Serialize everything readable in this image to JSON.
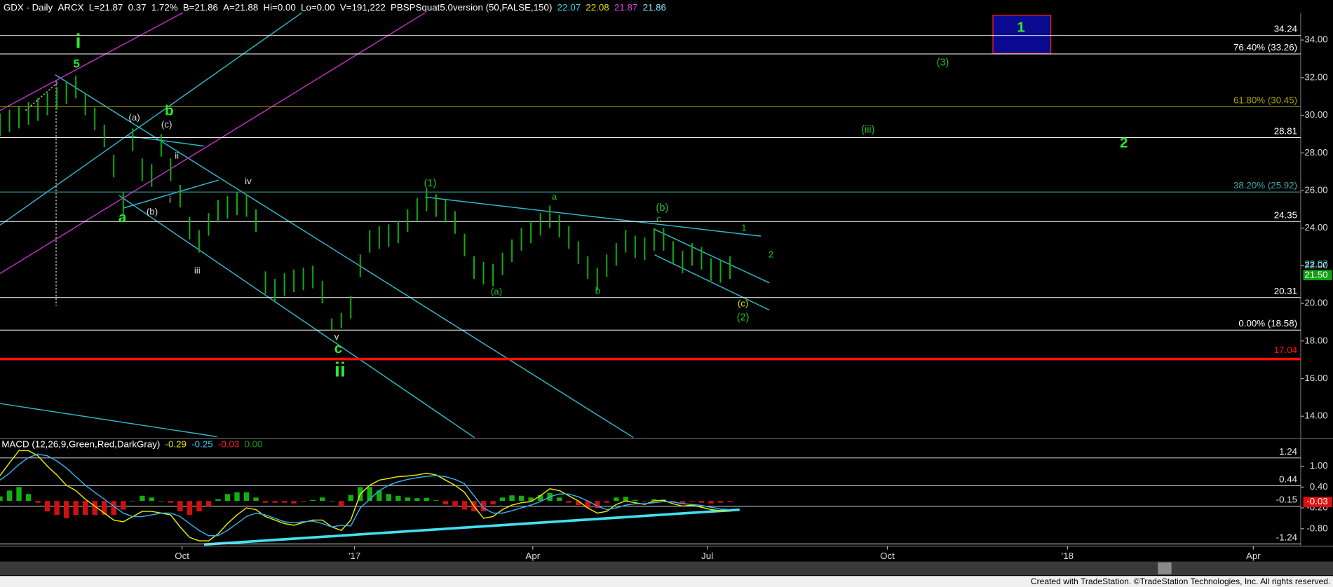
{
  "header": {
    "items": [
      {
        "text": "GDX - Daily",
        "color": "#ffffff"
      },
      {
        "text": "ARCX",
        "color": "#ffffff"
      },
      {
        "text": "L=21.87",
        "color": "#ffffff"
      },
      {
        "text": "0.37",
        "color": "#ffffff"
      },
      {
        "text": "1.72%",
        "color": "#ffffff"
      },
      {
        "text": "B=21.86",
        "color": "#ffffff"
      },
      {
        "text": "A=21.88",
        "color": "#ffffff"
      },
      {
        "text": "Hi=0.00",
        "color": "#ffffff"
      },
      {
        "text": "Lo=0.00",
        "color": "#ffffff"
      },
      {
        "text": "V=191,222",
        "color": "#ffffff"
      },
      {
        "text": "PBSPSquat5.0version (50,FALSE,150)",
        "color": "#ffffff"
      },
      {
        "text": "22.07",
        "color": "#30d8e0"
      },
      {
        "text": "22.08",
        "color": "#e0e000"
      },
      {
        "text": "21.87",
        "color": "#e040e0"
      },
      {
        "text": "21.86",
        "color": "#80e8ff"
      }
    ]
  },
  "chart_data": [
    {
      "type": "range-bar",
      "color": "#10b010",
      "x": [
        0,
        5,
        10,
        15,
        20,
        25,
        30,
        35,
        40,
        45,
        50,
        55,
        60,
        65,
        70,
        75,
        80,
        85,
        90,
        95,
        100,
        105,
        110,
        115,
        120,
        125,
        130,
        135,
        140,
        145,
        150,
        155,
        160,
        165,
        170,
        175,
        180,
        185,
        190,
        195,
        200,
        205,
        210,
        215,
        220,
        225,
        230,
        235,
        240,
        245,
        250,
        255,
        260,
        265,
        270,
        275,
        280,
        285,
        290,
        295,
        300,
        305,
        310,
        315,
        320,
        325,
        330,
        335,
        340,
        345,
        350,
        355,
        360,
        365,
        370,
        375,
        380,
        385
      ],
      "high": [
        30.1,
        30.3,
        30.5,
        30.7,
        30.9,
        31.2,
        31.5,
        31.8,
        32.1,
        31.2,
        30.4,
        29.5,
        27.9,
        25.9,
        29.3,
        27.7,
        27.4,
        29.0,
        27.7,
        26.3,
        24.6,
        23.9,
        24.8,
        25.5,
        25.7,
        25.9,
        25.8,
        25.0,
        21.7,
        21.3,
        21.6,
        21.8,
        21.9,
        22.0,
        21.2,
        19.2,
        19.5,
        20.4,
        22.6,
        23.9,
        24.1,
        24.2,
        24.4,
        25.0,
        25.6,
        26.1,
        25.8,
        25.5,
        24.9,
        23.7,
        22.5,
        22.2,
        22.1,
        22.7,
        23.4,
        24.0,
        24.4,
        24.8,
        25.2,
        24.7,
        24.1,
        23.3,
        22.5,
        21.9,
        22.6,
        23.2,
        23.9,
        23.6,
        23.5,
        24.0,
        24.0,
        23.3,
        22.8,
        23.2,
        23.0,
        22.4,
        22.3,
        22.5
      ],
      "low": [
        28.9,
        29.1,
        29.3,
        29.5,
        29.7,
        30.0,
        30.3,
        30.6,
        30.9,
        30.0,
        29.2,
        28.3,
        26.7,
        24.7,
        28.1,
        26.5,
        26.2,
        27.8,
        26.5,
        25.1,
        23.4,
        22.7,
        23.6,
        24.3,
        24.5,
        24.7,
        24.6,
        23.8,
        20.5,
        20.1,
        20.4,
        20.6,
        20.7,
        20.8,
        20.0,
        18.6,
        18.7,
        19.2,
        21.4,
        22.7,
        22.9,
        23.0,
        23.2,
        23.8,
        24.4,
        24.9,
        24.6,
        24.3,
        23.7,
        22.5,
        21.3,
        21.0,
        20.9,
        21.5,
        22.2,
        22.8,
        23.2,
        23.6,
        24.0,
        23.5,
        22.9,
        22.1,
        21.3,
        20.7,
        21.4,
        22.0,
        22.7,
        22.4,
        22.3,
        22.8,
        22.8,
        22.1,
        21.6,
        22.0,
        21.8,
        21.2,
        21.1,
        21.3
      ],
      "xlim": [
        0,
        686
      ],
      "ylim": [
        12.87,
        35.45
      ],
      "yticks": [
        {
          "value": 14,
          "label": "14.00"
        },
        {
          "value": 16,
          "label": "16.00"
        },
        {
          "value": 18,
          "label": "18.00"
        },
        {
          "value": 20,
          "label": "20.00"
        },
        {
          "value": 22,
          "label": "22.00"
        },
        {
          "value": 24,
          "label": "24.00"
        },
        {
          "value": 26,
          "label": "26.00"
        },
        {
          "value": 28,
          "label": "28.00"
        },
        {
          "value": 30,
          "label": "30.00"
        },
        {
          "value": 32,
          "label": "32.00"
        },
        {
          "value": 34,
          "label": "34.00"
        }
      ],
      "levels": [
        {
          "value": 34.24,
          "color": "#ffffff"
        },
        {
          "value": 33.26,
          "label": "76.40% (33.26)",
          "color": "#ffffff"
        },
        {
          "value": 30.45,
          "label": "61.80% (30.45)",
          "color": "#a8a000"
        },
        {
          "value": 28.81,
          "color": "#ffffff"
        },
        {
          "value": 25.92,
          "label": "38.20% (25.92)",
          "color": "#3aa8a8"
        },
        {
          "value": 24.35,
          "color": "#ffffff"
        },
        {
          "value": 20.31,
          "color": "#ffffff"
        },
        {
          "value": 18.58,
          "label": "0.00% (18.58)",
          "color": "#ffffff"
        }
      ],
      "support_line": {
        "value": 17.04,
        "color": "#ff1010"
      },
      "last_values": [
        {
          "value": 22.07,
          "color": "#30d8e0",
          "boxed": false
        },
        {
          "value": 21.5,
          "label": "21.50",
          "color": "#10a010",
          "boxed": true
        }
      ],
      "annotations": [
        "i",
        "5",
        "(a)",
        "b",
        "(c)",
        "ii",
        "i",
        "iv",
        "(b)",
        "a",
        "iii",
        "v",
        "c",
        "ii",
        "(1)",
        "a",
        "(a)",
        "b",
        "(b)",
        "c",
        "1",
        "2",
        "(c)",
        "(2)",
        "(3)",
        "(iii)",
        "2",
        "1"
      ]
    },
    {
      "type": "macd",
      "title": "MACD (12,26,9,Green,Red,DarkGray)",
      "title_values": [
        {
          "text": "-0.29",
          "color": "#e0e000"
        },
        {
          "text": "-0.25",
          "color": "#30c8f0"
        },
        {
          "text": "-0.03",
          "color": "#ff2020"
        },
        {
          "text": "0.00",
          "color": "#10a010"
        }
      ],
      "x": [
        0,
        5,
        10,
        15,
        20,
        25,
        30,
        35,
        40,
        45,
        50,
        55,
        60,
        65,
        70,
        75,
        80,
        85,
        90,
        95,
        100,
        105,
        110,
        115,
        120,
        125,
        130,
        135,
        140,
        145,
        150,
        155,
        160,
        165,
        170,
        175,
        180,
        185,
        190,
        195,
        200,
        205,
        210,
        215,
        220,
        225,
        230,
        235,
        240,
        245,
        250,
        255,
        260,
        265,
        270,
        275,
        280,
        285,
        290,
        295,
        300,
        305,
        310,
        315,
        320,
        325,
        330,
        335,
        340,
        345,
        350,
        355,
        360,
        365,
        370,
        375,
        380,
        385
      ],
      "series": [
        {
          "color": "#e8e800",
          "values": [
            0.73,
            1.1,
            1.45,
            1.45,
            1.3,
            1.0,
            0.75,
            0.45,
            0.3,
            0.05,
            -0.15,
            -0.35,
            -0.55,
            -0.6,
            -0.45,
            -0.3,
            -0.3,
            -0.35,
            -0.4,
            -0.75,
            -1.05,
            -1.15,
            -1.15,
            -0.95,
            -0.65,
            -0.4,
            -0.2,
            -0.25,
            -0.45,
            -0.55,
            -0.65,
            -0.7,
            -0.62,
            -0.55,
            -0.55,
            -0.75,
            -0.85,
            -0.55,
            0.2,
            0.45,
            0.6,
            0.65,
            0.7,
            0.72,
            0.75,
            0.8,
            0.75,
            0.6,
            0.45,
            0.25,
            -0.15,
            -0.5,
            -0.45,
            -0.25,
            -0.12,
            -0.05,
            -0.02,
            0.15,
            0.35,
            0.3,
            0.15,
            0.0,
            -0.2,
            -0.35,
            -0.3,
            -0.1,
            0.0,
            -0.05,
            -0.1,
            0.0,
            0.02,
            -0.08,
            -0.15,
            -0.12,
            -0.18,
            -0.25,
            -0.28,
            -0.29
          ]
        },
        {
          "color": "#30b0f0",
          "values": [
            0.6,
            0.8,
            1.05,
            1.25,
            1.35,
            1.3,
            1.15,
            0.95,
            0.7,
            0.45,
            0.25,
            0.05,
            -0.15,
            -0.35,
            -0.45,
            -0.45,
            -0.4,
            -0.35,
            -0.35,
            -0.45,
            -0.65,
            -0.85,
            -1.0,
            -1.0,
            -0.85,
            -0.65,
            -0.45,
            -0.35,
            -0.4,
            -0.5,
            -0.6,
            -0.63,
            -0.6,
            -0.58,
            -0.65,
            -0.75,
            -0.7,
            -0.72,
            -0.2,
            0.05,
            0.3,
            0.45,
            0.55,
            0.62,
            0.67,
            0.71,
            0.73,
            0.7,
            0.62,
            0.5,
            0.15,
            -0.2,
            -0.35,
            -0.35,
            -0.28,
            -0.2,
            -0.12,
            -0.02,
            0.12,
            0.2,
            0.2,
            0.12,
            0.0,
            -0.15,
            -0.25,
            -0.2,
            -0.12,
            -0.08,
            -0.08,
            -0.05,
            -0.02,
            -0.03,
            -0.08,
            -0.1,
            -0.13,
            -0.18,
            -0.23,
            -0.25
          ]
        }
      ],
      "histogram": {
        "up_color": "#10b010",
        "down_color": "#d01010",
        "values": [
          0.13,
          0.3,
          0.4,
          0.2,
          -0.05,
          -0.3,
          -0.4,
          -0.5,
          -0.4,
          -0.4,
          -0.4,
          -0.4,
          -0.4,
          -0.25,
          0,
          0.15,
          0.1,
          0,
          -0.05,
          -0.3,
          -0.4,
          -0.3,
          -0.15,
          0.05,
          0.2,
          0.25,
          0.25,
          0.1,
          -0.05,
          -0.05,
          -0.05,
          -0.07,
          -0.02,
          0.03,
          0.1,
          0,
          -0.15,
          0.17,
          0.4,
          0.4,
          0.3,
          0.2,
          0.15,
          0.1,
          0.08,
          0.09,
          0.02,
          -0.1,
          -0.17,
          -0.25,
          -0.3,
          -0.3,
          -0.1,
          0.1,
          0.16,
          0.15,
          0.1,
          0.17,
          0.23,
          0.1,
          -0.05,
          -0.12,
          -0.2,
          -0.2,
          -0.05,
          0.1,
          0.12,
          0.03,
          -0.02,
          0.05,
          0.04,
          -0.05,
          -0.07,
          -0.02,
          -0.05,
          -0.07,
          -0.05,
          -0.03
        ]
      },
      "xlim": [
        0,
        686
      ],
      "ylim": [
        -1.28,
        1.78
      ],
      "xticks": [
        {
          "value": 96,
          "label": "Oct"
        },
        {
          "value": 187,
          "label": "'17"
        },
        {
          "value": 281,
          "label": "Apr"
        },
        {
          "value": 373,
          "label": "Jul"
        },
        {
          "value": 468,
          "label": "Oct"
        },
        {
          "value": 563,
          "label": "'18"
        },
        {
          "value": 661,
          "label": "Apr"
        }
      ],
      "yticks": [
        {
          "value": 1,
          "label": "1.00"
        },
        {
          "value": 0.4,
          "label": "0.40"
        },
        {
          "value": -0.2,
          "label": "-0.20"
        },
        {
          "value": -0.8,
          "label": "-0.80"
        }
      ],
      "levels": [
        1.24,
        0.44,
        -0.15,
        -1.24
      ],
      "last_value": {
        "value": -0.03,
        "color": "#e01010"
      }
    }
  ],
  "footer": "Created with TradeStation. ©TradeStation Technologies, Inc. All rights reserved."
}
